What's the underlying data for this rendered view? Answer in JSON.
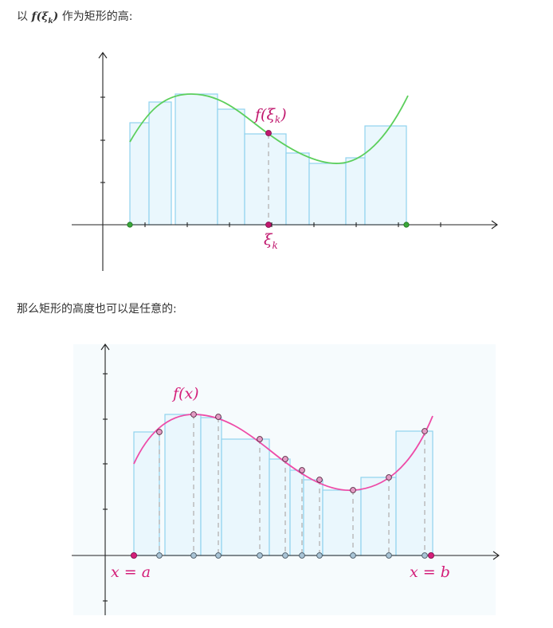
{
  "captions": {
    "first_prefix": "以",
    "first_math": "f(ξ",
    "first_math_sub": "k",
    "first_math_close": ")",
    "first_suffix": "作为矩形的高:",
    "second": "那么矩形的高度也可以是任意的:"
  },
  "figure1": {
    "function_label": "f(ξ",
    "function_label_sub": "k",
    "function_label_close": ")",
    "xi_label": "ξ",
    "xi_label_sub": "k",
    "colors": {
      "curve": "#5ccf5c",
      "rect_fill": "#eaf7fd",
      "rect_stroke": "#8fd3ee",
      "point": "#c0186e",
      "endpoint": "#3aa83a"
    }
  },
  "figure2": {
    "function_label": "f(x)",
    "a_label": "x = a",
    "b_label": "x = b",
    "colors": {
      "curve": "#ee4ba7",
      "rect_fill": "#eaf7fd",
      "rect_stroke": "#8fd3ee",
      "point_fill": "#a9c4d6",
      "endpoint": "#d41f7a",
      "background": "#f6fbfd"
    }
  }
}
